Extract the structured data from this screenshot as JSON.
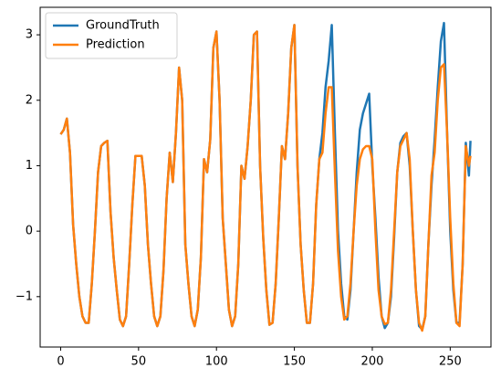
{
  "chart_data": {
    "type": "line",
    "x": [
      0,
      2,
      4,
      6,
      8,
      10,
      12,
      14,
      16,
      18,
      20,
      22,
      24,
      26,
      28,
      30,
      32,
      34,
      36,
      38,
      40,
      42,
      44,
      46,
      48,
      50,
      52,
      54,
      56,
      58,
      60,
      62,
      64,
      66,
      68,
      70,
      72,
      74,
      76,
      78,
      80,
      82,
      84,
      86,
      88,
      90,
      92,
      94,
      96,
      98,
      100,
      102,
      104,
      106,
      108,
      110,
      112,
      114,
      116,
      118,
      120,
      122,
      124,
      126,
      128,
      130,
      132,
      134,
      136,
      138,
      140,
      142,
      144,
      146,
      148,
      150,
      152,
      154,
      156,
      158,
      160,
      162,
      164,
      166,
      168,
      170,
      172,
      174,
      176,
      178,
      180,
      182,
      184,
      186,
      188,
      190,
      192,
      194,
      196,
      198,
      200,
      202,
      204,
      206,
      208,
      210,
      212,
      214,
      216,
      218,
      220,
      222,
      224,
      226,
      228,
      230,
      232,
      234,
      236,
      238,
      240,
      242,
      244,
      246,
      248,
      250,
      252,
      254,
      256,
      258,
      260,
      262,
      263
    ],
    "series": [
      {
        "name": "GroundTruth",
        "color": "#1f77b4",
        "values": [
          1.48,
          1.55,
          1.72,
          1.2,
          0.1,
          -0.5,
          -1.0,
          -1.3,
          -1.4,
          -1.4,
          -0.8,
          0.0,
          0.9,
          1.3,
          1.35,
          1.38,
          0.3,
          -0.4,
          -0.9,
          -1.35,
          -1.45,
          -1.3,
          -0.5,
          0.4,
          1.15,
          1.15,
          1.15,
          0.7,
          -0.2,
          -0.8,
          -1.3,
          -1.45,
          -1.3,
          -0.6,
          0.5,
          1.2,
          0.75,
          1.5,
          2.5,
          2.0,
          -0.2,
          -0.8,
          -1.3,
          -1.45,
          -1.2,
          -0.4,
          1.1,
          0.9,
          1.4,
          2.8,
          3.05,
          2.0,
          0.2,
          -0.5,
          -1.2,
          -1.45,
          -1.3,
          -0.5,
          1.0,
          0.8,
          1.3,
          2.0,
          3.0,
          3.05,
          1.0,
          -0.1,
          -0.9,
          -1.43,
          -1.4,
          -0.8,
          0.2,
          1.3,
          1.1,
          1.8,
          2.8,
          3.15,
          1.0,
          -0.2,
          -0.9,
          -1.4,
          -1.4,
          -0.8,
          0.4,
          1.1,
          1.5,
          2.2,
          2.6,
          3.15,
          1.5,
          0.0,
          -0.8,
          -1.3,
          -1.35,
          -0.9,
          0.0,
          0.9,
          1.55,
          1.8,
          1.95,
          2.1,
          1.0,
          0.2,
          -0.7,
          -1.3,
          -1.48,
          -1.4,
          -1.0,
          -0.1,
          0.9,
          1.35,
          1.45,
          1.5,
          1.0,
          0.0,
          -0.9,
          -1.45,
          -1.5,
          -1.3,
          -0.2,
          0.7,
          1.4,
          2.2,
          2.9,
          3.18,
          1.5,
          0.0,
          -0.9,
          -1.4,
          -1.4,
          -0.5,
          1.35,
          0.85,
          1.38
        ]
      },
      {
        "name": "Prediction",
        "color": "#ff7f0e",
        "values": [
          1.48,
          1.55,
          1.72,
          1.2,
          0.1,
          -0.5,
          -1.0,
          -1.3,
          -1.4,
          -1.4,
          -0.8,
          0.0,
          0.9,
          1.3,
          1.35,
          1.38,
          0.3,
          -0.4,
          -0.9,
          -1.35,
          -1.45,
          -1.3,
          -0.5,
          0.4,
          1.15,
          1.15,
          1.15,
          0.7,
          -0.2,
          -0.8,
          -1.3,
          -1.45,
          -1.3,
          -0.6,
          0.5,
          1.2,
          0.75,
          1.5,
          2.5,
          2.0,
          -0.2,
          -0.8,
          -1.3,
          -1.45,
          -1.2,
          -0.4,
          1.1,
          0.9,
          1.4,
          2.8,
          3.05,
          2.0,
          0.2,
          -0.5,
          -1.2,
          -1.45,
          -1.3,
          -0.5,
          1.0,
          0.8,
          1.3,
          2.0,
          3.0,
          3.05,
          1.0,
          -0.1,
          -0.9,
          -1.43,
          -1.4,
          -0.8,
          0.2,
          1.3,
          1.1,
          1.8,
          2.8,
          3.15,
          1.0,
          -0.2,
          -0.9,
          -1.4,
          -1.4,
          -0.8,
          0.4,
          1.1,
          1.2,
          1.8,
          2.2,
          2.2,
          0.9,
          -0.3,
          -1.0,
          -1.35,
          -1.3,
          -0.8,
          0.0,
          0.7,
          1.1,
          1.25,
          1.3,
          1.3,
          1.1,
          0.0,
          -0.9,
          -1.3,
          -1.42,
          -1.4,
          -0.9,
          0.0,
          0.9,
          1.3,
          1.4,
          1.5,
          1.1,
          0.0,
          -0.9,
          -1.4,
          -1.52,
          -1.3,
          -0.2,
          0.85,
          1.2,
          2.0,
          2.5,
          2.55,
          1.5,
          0.2,
          -0.8,
          -1.4,
          -1.45,
          -0.5,
          1.3,
          1.0,
          1.15
        ]
      }
    ],
    "xlim": [
      -13.15,
      276.15
    ],
    "ylim": [
      -1.77,
      3.42
    ],
    "xticks": [
      0,
      50,
      100,
      150,
      200,
      250
    ],
    "yticks": [
      {
        "value": -1,
        "label": "−1"
      },
      0,
      1,
      2,
      3
    ],
    "legend": "upper left"
  }
}
